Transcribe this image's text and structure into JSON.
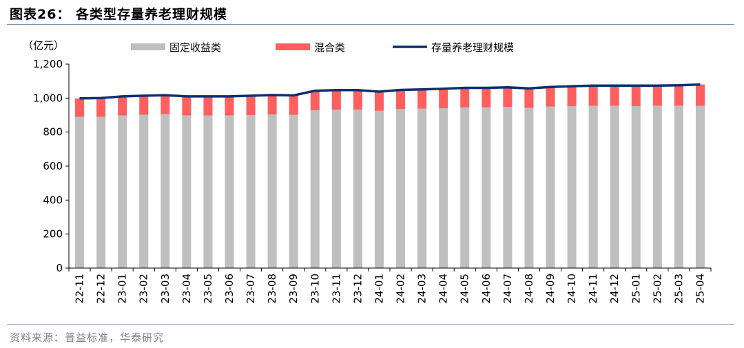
{
  "figure": {
    "title": "图表26：  各类型存量养老理财规模",
    "source": "资料来源：普益标准，华泰研究"
  },
  "colors": {
    "fixed_income": "#bfbfbf",
    "mixed": "#ff5f5f",
    "total_line": "#0b2f6b",
    "rule": "#7a93b3"
  },
  "chart_data": {
    "type": "bar",
    "stacked": true,
    "unit_label": "（亿元）",
    "ylim": [
      0,
      1200
    ],
    "yticks": [
      0,
      200,
      400,
      600,
      800,
      1000,
      1200
    ],
    "ytick_labels": [
      "0",
      "200",
      "400",
      "600",
      "800",
      "1,000",
      "1,200"
    ],
    "legend_position": "top",
    "categories": [
      "22-11",
      "22-12",
      "23-01",
      "23-02",
      "23-03",
      "23-04",
      "23-05",
      "23-06",
      "23-07",
      "23-08",
      "23-09",
      "23-10",
      "23-11",
      "23-12",
      "24-01",
      "24-02",
      "24-03",
      "24-04",
      "24-05",
      "24-06",
      "24-07",
      "24-08",
      "24-09",
      "24-10",
      "24-11",
      "24-12",
      "25-01",
      "25-02",
      "25-03",
      "25-04"
    ],
    "series": [
      {
        "name": "固定收益类",
        "kind": "bar",
        "values": [
          890,
          890,
          898,
          902,
          905,
          898,
          898,
          898,
          900,
          904,
          902,
          928,
          932,
          932,
          925,
          935,
          938,
          940,
          945,
          945,
          948,
          942,
          950,
          952,
          955,
          955,
          953,
          955,
          955,
          955
        ]
      },
      {
        "name": "混合类",
        "kind": "bar",
        "values": [
          108,
          110,
          112,
          112,
          112,
          112,
          112,
          112,
          114,
          114,
          114,
          115,
          115,
          115,
          113,
          113,
          113,
          115,
          115,
          115,
          115,
          115,
          115,
          118,
          118,
          118,
          120,
          118,
          120,
          125
        ]
      },
      {
        "name": "存量养老理财规模",
        "kind": "line",
        "values": [
          998,
          1000,
          1010,
          1014,
          1017,
          1010,
          1010,
          1010,
          1014,
          1018,
          1016,
          1043,
          1047,
          1047,
          1038,
          1048,
          1051,
          1055,
          1060,
          1060,
          1063,
          1057,
          1065,
          1070,
          1073,
          1073,
          1073,
          1073,
          1075,
          1080
        ]
      }
    ]
  }
}
